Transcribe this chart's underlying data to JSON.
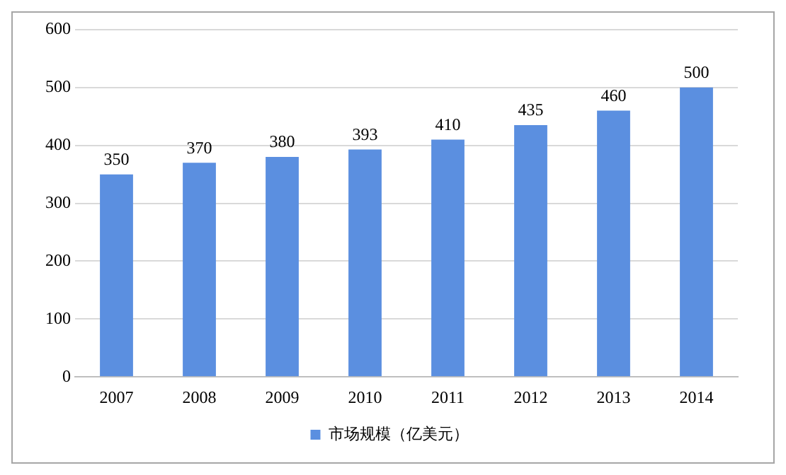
{
  "chart_data": {
    "type": "bar",
    "categories": [
      "2007",
      "2008",
      "2009",
      "2010",
      "2011",
      "2012",
      "2013",
      "2014"
    ],
    "series": [
      {
        "name": "市场规模（亿美元）",
        "color": "#5b8fe0",
        "values": [
          350,
          370,
          380,
          393,
          410,
          435,
          460,
          500
        ]
      }
    ],
    "ylim": [
      0,
      600
    ],
    "yticks": [
      0,
      100,
      200,
      300,
      400,
      500,
      600
    ],
    "grid": "y",
    "legend": "bottom",
    "data_labels": true
  }
}
